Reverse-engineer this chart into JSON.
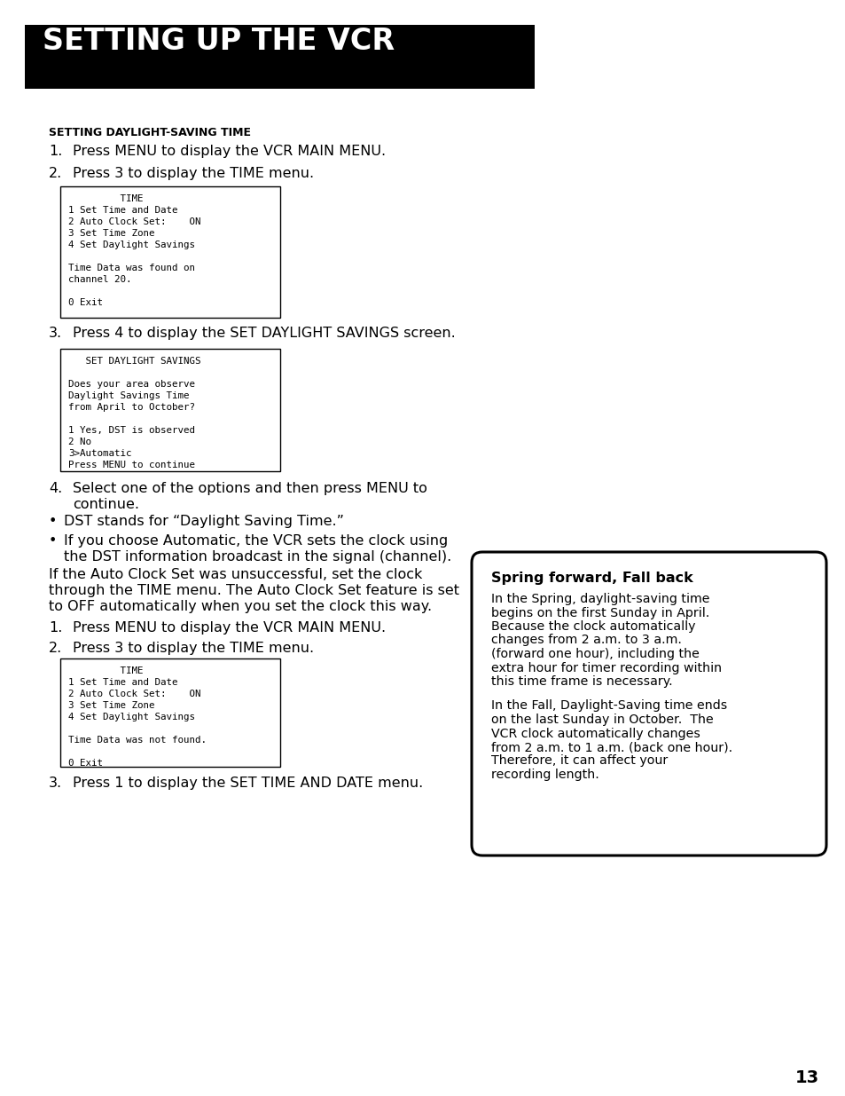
{
  "title_banner": "SETTING UP THE VCR",
  "section_heading": "SETTING DAYLIGHT-SAVING TIME",
  "step1_text": "Press MENU to display the VCR MAIN MENU.",
  "step2_text": "Press 3 to display the TIME menu.",
  "box1_lines": [
    "         TIME",
    "1 Set Time and Date",
    "2 Auto Clock Set:    ON",
    "3 Set Time Zone",
    "4 Set Daylight Savings",
    "",
    "Time Data was found on",
    "channel 20.",
    "",
    "0 Exit"
  ],
  "step3_text": "Press 4 to display the SET DAYLIGHT SAVINGS screen.",
  "box2_lines": [
    "   SET DAYLIGHT SAVINGS",
    "",
    "Does your area observe",
    "Daylight Savings Time",
    "from April to October?",
    "",
    "1 Yes, DST is observed",
    "2 No",
    "3>Automatic",
    "Press MENU to continue"
  ],
  "step4_text": "Select one of the options and then press MENU to\ncontinue.",
  "bullet1": "DST stands for “Daylight Saving Time.”",
  "bullet2_line1": "If you choose Automatic, the VCR sets the clock using",
  "bullet2_line2": "the DST information broadcast in the signal (channel).",
  "para_line1": "If the Auto Clock Set was unsuccessful, set the clock",
  "para_line2": "through the TIME menu. The Auto Clock Set feature is set",
  "para_line3": "to OFF automatically when you set the clock this way.",
  "step1b_text": "Press MENU to display the VCR MAIN MENU.",
  "step2b_text": "Press 3 to display the TIME menu.",
  "box3_lines": [
    "         TIME",
    "1 Set Time and Date",
    "2 Auto Clock Set:    ON",
    "3 Set Time Zone",
    "4 Set Daylight Savings",
    "",
    "Time Data was not found.",
    "",
    "0 Exit"
  ],
  "step3b_text": "Press 1 to display the SET TIME AND DATE menu.",
  "sidebar_title": "Spring forward, Fall back",
  "sidebar_p1_lines": [
    "In the Spring, daylight-saving time",
    "begins on the first Sunday in April.",
    "Because the clock automatically",
    "changes from 2 a.m. to 3 a.m.",
    "(forward one hour), including the",
    "extra hour for timer recording within",
    "this time frame is necessary."
  ],
  "sidebar_p2_lines": [
    "In the Fall, Daylight-Saving time ends",
    "on the last Sunday in October.  The",
    "VCR clock automatically changes",
    "from 2 a.m. to 1 a.m. (back one hour).",
    "Therefore, it can affect your",
    "recording length."
  ],
  "page_number": "13",
  "bg_color": "#ffffff",
  "banner_bg": "#000000",
  "banner_fg": "#ffffff",
  "text_color": "#000000"
}
